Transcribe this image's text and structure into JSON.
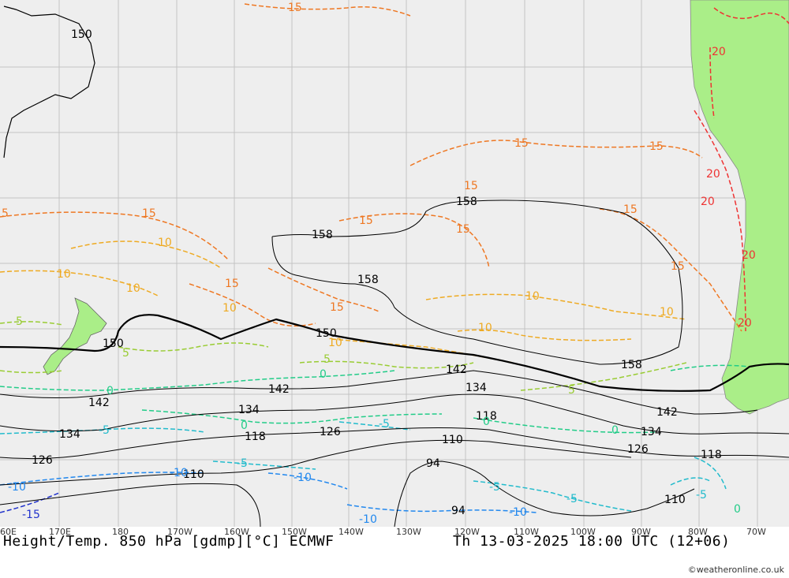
{
  "map": {
    "title": "Height/Temp. 850 hPa [gdmp][°C] ECMWF",
    "valid_time": "Th 13-03-2025 18:00 UTC (12+06)",
    "credit": "©weatheronline.co.uk",
    "lon_ticks": [
      "60E",
      "170E",
      "180",
      "170W",
      "160W",
      "150W",
      "140W",
      "130W",
      "120W",
      "110W",
      "100W",
      "90W",
      "80W",
      "70W"
    ],
    "height_labels": {
      "h150a": "150",
      "h150b": "150",
      "h150c": "150",
      "h158a": "158",
      "h158b": "158",
      "h158c": "158",
      "h158d": "158",
      "h142a": "142",
      "h142b": "142",
      "h142c": "142",
      "h142d": "142",
      "h134a": "134",
      "h134b": "134",
      "h134c": "134",
      "h134d": "134",
      "h126a": "126",
      "h126b": "126",
      "h126c": "126",
      "h118a": "118",
      "h118b": "118",
      "h118c": "118",
      "h110a": "110",
      "h110b": "110",
      "h110c": "110",
      "h94a": "94",
      "h94b": "94"
    },
    "temp_labels": {
      "t15a": "15",
      "t15b": "15",
      "t15c": "15",
      "t15d": "15",
      "t15e": "15",
      "t15f": "15",
      "t15g": "15",
      "t15h": "15",
      "t15i": "15",
      "t15j": "15",
      "t15k": "15",
      "t20a": "20",
      "t20b": "20",
      "t20c": "20",
      "t20d": "20",
      "t20e": "20",
      "t10a": "10",
      "t10b": "10",
      "t10c": "10",
      "t10d": "10",
      "t10e": "10",
      "t10f": "10",
      "t10g": "10",
      "t10h": "10",
      "t5a": "5",
      "t5b": "5",
      "t5c": "5",
      "t5d": "5",
      "t5e": "5",
      "t0a": "0",
      "t0b": "0",
      "t0c": "0",
      "t0d": "0",
      "t0e": "0",
      "t0f": "0",
      "tm5a": "-5",
      "tm5b": "-5",
      "tm5c": "-5",
      "tm5d": "-5",
      "tm5e": "-5",
      "tm5f": "-5",
      "tm10a": "-10",
      "tm10b": "-10",
      "tm10c": "-10",
      "tm10d": "-10",
      "tm10e": "-10",
      "tm15a": "-15"
    },
    "colors": {
      "ocean": "#eeeeee",
      "land": "#aaee88",
      "grid": "#bbbbbb",
      "t20": "#ee3333",
      "t15": "#ee7722",
      "t10": "#eeaa22",
      "t5": "#99cc33",
      "t0": "#22cc88",
      "tm5": "#22bbcc",
      "tm10": "#2288ee",
      "tm15": "#2233cc"
    }
  }
}
